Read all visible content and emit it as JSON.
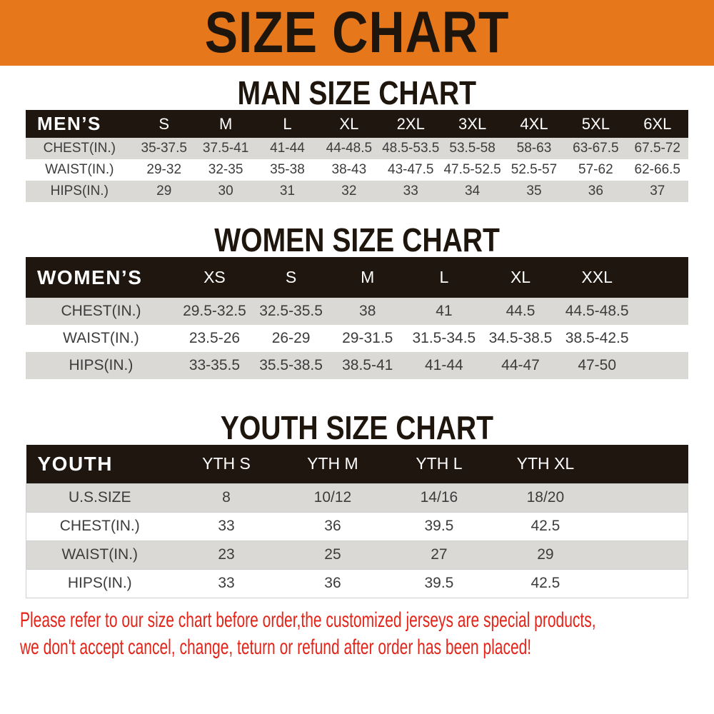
{
  "banner": {
    "title": "SIZE CHART"
  },
  "sections": [
    {
      "id": "men",
      "heading": "MAN SIZE CHART",
      "table": {
        "header": [
          "MEN’S",
          "S",
          "M",
          "L",
          "XL",
          "2XL",
          "3XL",
          "4XL",
          "5XL",
          "6XL"
        ],
        "rows": [
          {
            "label": "CHEST(IN.)",
            "values": [
              "35-37.5",
              "37.5-41",
              "41-44",
              "44-48.5",
              "48.5-53.5",
              "53.5-58",
              "58-63",
              "63-67.5",
              "67.5-72"
            ]
          },
          {
            "label": "WAIST(IN.)",
            "values": [
              "29-32",
              "32-35",
              "35-38",
              "38-43",
              "43-47.5",
              "47.5-52.5",
              "52.5-57",
              "57-62",
              "62-66.5"
            ]
          },
          {
            "label": "HIPS(IN.)",
            "values": [
              "29",
              "30",
              "31",
              "32",
              "33",
              "34",
              "35",
              "36",
              "37"
            ]
          }
        ]
      }
    },
    {
      "id": "women",
      "heading": "WOMEN SIZE CHART",
      "table": {
        "header": [
          "WOMEN’S",
          "XS",
          "S",
          "M",
          "L",
          "XL",
          "XXL"
        ],
        "rows": [
          {
            "label": "CHEST(IN.)",
            "values": [
              "29.5-32.5",
              "32.5-35.5",
              "38",
              "41",
              "44.5",
              "44.5-48.5"
            ]
          },
          {
            "label": "WAIST(IN.)",
            "values": [
              "23.5-26",
              "26-29",
              "29-31.5",
              "31.5-34.5",
              "34.5-38.5",
              "38.5-42.5"
            ]
          },
          {
            "label": "HIPS(IN.)",
            "values": [
              "33-35.5",
              "35.5-38.5",
              "38.5-41",
              "41-44",
              "44-47",
              "47-50"
            ]
          }
        ]
      }
    },
    {
      "id": "youth",
      "heading": "YOUTH SIZE CHART",
      "table": {
        "header": [
          "YOUTH",
          "YTH S",
          "YTH M",
          "YTH L",
          "YTH XL"
        ],
        "rows": [
          {
            "label": "U.S.SIZE",
            "values": [
              "8",
              "10/12",
              "14/16",
              "18/20"
            ]
          },
          {
            "label": "CHEST(IN.)",
            "values": [
              "33",
              "36",
              "39.5",
              "42.5"
            ]
          },
          {
            "label": "WAIST(IN.)",
            "values": [
              "23",
              "25",
              "27",
              "29"
            ]
          },
          {
            "label": "HIPS(IN.)",
            "values": [
              "33",
              "36",
              "39.5",
              "42.5"
            ]
          }
        ]
      }
    }
  ],
  "disclaimer": {
    "line1": "Please refer to our size chart before order,the customized jerseys are special products,",
    "line2": "we don't accept cancel, change, teturn or refund after order has been placed!"
  },
  "colors": {
    "banner_bg": "#E6771B",
    "heading_text": "#1E150D",
    "table_header_bg": "#1F160F",
    "table_header_text": "#FFFFFF",
    "row_shade": "#DAD9D6",
    "cell_text": "#3C3C3C",
    "disclaimer_red": "#E32419"
  }
}
